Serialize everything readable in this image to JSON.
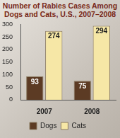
{
  "chart_data": {
    "type": "bar",
    "title": "Number of Rabies Cases Among Dogs and Cats, U.S., 2007–2008",
    "categories": [
      "2007",
      "2008"
    ],
    "series": [
      {
        "name": "Dogs",
        "color": "#5c3b24",
        "values": [
          93,
          75
        ]
      },
      {
        "name": "Cats",
        "color": "#f6e7a6",
        "values": [
          274,
          294
        ]
      }
    ],
    "ylim": [
      0,
      300
    ],
    "yticks": [
      0,
      50,
      100,
      150,
      200,
      250,
      300
    ],
    "grid": false,
    "legend": "bottom",
    "data_labels": true
  }
}
